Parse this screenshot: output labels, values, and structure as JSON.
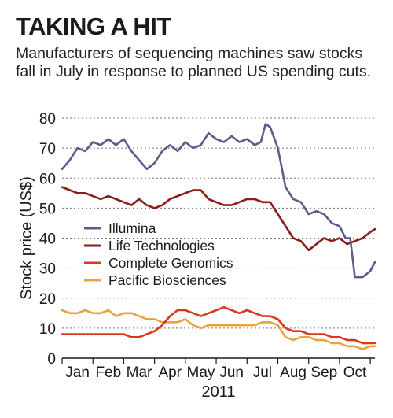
{
  "header": {
    "title": "TAKING A HIT",
    "subtitle": "Manufacturers of sequencing machines saw stocks fall in July in response to planned US spending cuts."
  },
  "chart_data": {
    "type": "line",
    "title": "TAKING A HIT",
    "subtitle": "Manufacturers of sequencing machines saw stocks fall in July in response to planned US spending cuts.",
    "xlabel": "2011",
    "ylabel": "Stock price (US$)",
    "xlim": [
      0,
      10.15
    ],
    "ylim": [
      0,
      80
    ],
    "yticks": [
      0,
      10,
      20,
      30,
      40,
      50,
      60,
      70,
      80
    ],
    "categories": [
      "Jan",
      "Feb",
      "Mar",
      "Apr",
      "May",
      "Jun",
      "Jul",
      "Aug",
      "Sep",
      "Oct"
    ],
    "category_positions": [
      0.5,
      1.5,
      2.5,
      3.5,
      4.5,
      5.5,
      6.5,
      7.5,
      8.5,
      9.5
    ],
    "grid": true,
    "legend_position": "middle-left",
    "series": [
      {
        "name": "Illumina",
        "color": "#5b5c8c",
        "x": [
          0,
          0.25,
          0.5,
          0.75,
          1,
          1.25,
          1.5,
          1.75,
          2,
          2.25,
          2.5,
          2.75,
          3,
          3.25,
          3.5,
          3.75,
          4,
          4.25,
          4.5,
          4.75,
          5,
          5.25,
          5.5,
          5.75,
          6,
          6.25,
          6.45,
          6.6,
          6.75,
          7,
          7.25,
          7.5,
          7.75,
          8,
          8.25,
          8.5,
          8.75,
          9,
          9.2,
          9.35,
          9.5,
          9.75,
          10,
          10.15
        ],
        "y": [
          63,
          66,
          70,
          69,
          72,
          71,
          73,
          71,
          73,
          69,
          66,
          63,
          65,
          69,
          71,
          69,
          72,
          70,
          71,
          75,
          73,
          72,
          74,
          72,
          73,
          71,
          72,
          78,
          77,
          70,
          57,
          53,
          52,
          48,
          49,
          48,
          45,
          44,
          40,
          40,
          27,
          27,
          29,
          32
        ]
      },
      {
        "name": "Life Technologies",
        "color": "#8b1a1a",
        "x": [
          0,
          0.25,
          0.5,
          0.75,
          1,
          1.25,
          1.5,
          1.75,
          2,
          2.25,
          2.5,
          2.75,
          3,
          3.25,
          3.5,
          3.75,
          4,
          4.25,
          4.5,
          4.75,
          5,
          5.25,
          5.5,
          5.75,
          6,
          6.25,
          6.5,
          6.75,
          7,
          7.25,
          7.5,
          7.75,
          8,
          8.25,
          8.5,
          8.75,
          9,
          9.25,
          9.5,
          9.75,
          10,
          10.15
        ],
        "y": [
          57,
          56,
          55,
          55,
          54,
          53,
          54,
          53,
          52,
          51,
          53,
          51,
          50,
          51,
          53,
          54,
          55,
          56,
          56,
          53,
          52,
          51,
          51,
          52,
          53,
          53,
          52,
          52,
          48,
          44,
          40,
          39,
          36,
          38,
          40,
          39,
          40,
          38,
          39,
          40,
          42,
          43
        ]
      },
      {
        "name": "Complete Genomics",
        "color": "#d9381e",
        "x": [
          0,
          0.25,
          0.5,
          0.75,
          1,
          1.25,
          1.5,
          1.75,
          2,
          2.25,
          2.5,
          2.75,
          3,
          3.25,
          3.5,
          3.75,
          4,
          4.25,
          4.5,
          4.75,
          5,
          5.25,
          5.5,
          5.75,
          6,
          6.25,
          6.5,
          6.75,
          7,
          7.25,
          7.5,
          7.75,
          8,
          8.25,
          8.5,
          8.75,
          9,
          9.25,
          9.5,
          9.75,
          10,
          10.15
        ],
        "y": [
          8,
          8,
          8,
          8,
          8,
          8,
          8,
          8,
          8,
          7,
          7,
          8,
          9,
          11,
          14,
          16,
          16,
          15,
          14,
          15,
          16,
          17,
          16,
          15,
          16,
          15,
          14,
          14,
          13,
          10,
          9,
          9,
          8,
          8,
          8,
          7,
          7,
          6,
          6,
          5,
          5,
          5
        ]
      },
      {
        "name": "Pacific Biosciences",
        "color": "#e8a33d",
        "x": [
          0,
          0.25,
          0.5,
          0.75,
          1,
          1.25,
          1.5,
          1.75,
          2,
          2.25,
          2.5,
          2.75,
          3,
          3.25,
          3.5,
          3.75,
          4,
          4.25,
          4.5,
          4.75,
          5,
          5.25,
          5.5,
          5.75,
          6,
          6.25,
          6.5,
          6.75,
          7,
          7.25,
          7.5,
          7.75,
          8,
          8.25,
          8.5,
          8.75,
          9,
          9.25,
          9.5,
          9.75,
          10,
          10.15
        ],
        "y": [
          16,
          15,
          15,
          16,
          15,
          15,
          16,
          14,
          15,
          15,
          14,
          13,
          13,
          12,
          12,
          12,
          13,
          11,
          10,
          11,
          11,
          11,
          11,
          11,
          11,
          11,
          12,
          12,
          11,
          7,
          6,
          7,
          7,
          6,
          6,
          5,
          5,
          4,
          4,
          3,
          4,
          4
        ]
      }
    ]
  }
}
